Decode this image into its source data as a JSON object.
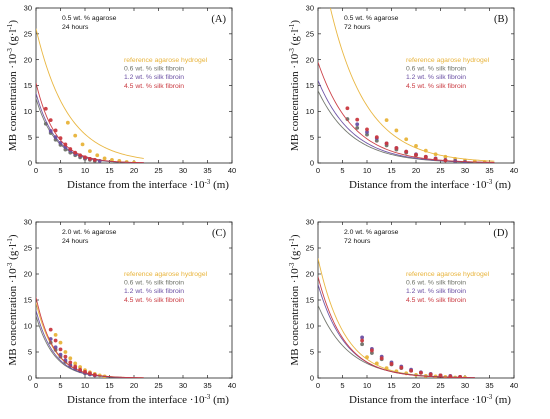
{
  "figure": {
    "ylabel_main": "MB concentration ·10",
    "ylabel_exp": "-3",
    "ylabel_unit_open": " (g·l",
    "ylabel_unit_exp": "-1",
    "ylabel_unit_close": ")",
    "xlabel_main": "Distance from the interface ·10",
    "xlabel_exp": "-3",
    "xlabel_unit": " (m)"
  },
  "series_styles": [
    {
      "name": "reference agarose hydrogel",
      "color": "#e8b339"
    },
    {
      "name": "0.6 wt. % silk fibroin",
      "color": "#6e7268"
    },
    {
      "name": "1.2 wt. % silk fibroin",
      "color": "#6a4fa3"
    },
    {
      "name": "4.5 wt. % silk fibroin",
      "color": "#c9383f"
    }
  ],
  "chart_data": [
    {
      "type": "scatter",
      "panel_label": "(A)",
      "condition": "0.5 wt. % agarose",
      "time": "24 hours",
      "xlim": [
        0,
        40
      ],
      "ylim": [
        0,
        30
      ],
      "xticks": [
        0,
        5,
        10,
        15,
        20,
        25,
        30,
        35,
        40
      ],
      "yticks": [
        0,
        5,
        10,
        15,
        20,
        25,
        30
      ],
      "legend_position": "right",
      "series": [
        {
          "name": "reference agarose hydrogel",
          "fit": {
            "c0": 26.0,
            "L": 6.5,
            "xmax": 22
          },
          "points": [
            [
              6.5,
              7.8
            ],
            [
              8.0,
              5.3
            ],
            [
              9.5,
              3.6
            ],
            [
              11.0,
              2.3
            ],
            [
              12.5,
              1.5
            ],
            [
              14.0,
              0.9
            ],
            [
              15.5,
              0.6
            ],
            [
              17.0,
              0.4
            ],
            [
              18.5,
              0.2
            ],
            [
              20.0,
              0.1
            ]
          ]
        },
        {
          "name": "0.6 wt. % silk fibroin",
          "fit": {
            "c0": 12.5,
            "L": 4.0,
            "xmax": 22
          },
          "points": [
            [
              2.0,
              7.6
            ],
            [
              3.0,
              5.8
            ],
            [
              4.0,
              4.5
            ],
            [
              5.0,
              3.5
            ],
            [
              6.0,
              2.6
            ],
            [
              7.0,
              2.0
            ],
            [
              8.0,
              1.5
            ],
            [
              9.0,
              1.1
            ],
            [
              10.0,
              0.8
            ],
            [
              11.0,
              0.6
            ],
            [
              12.0,
              0.4
            ]
          ]
        },
        {
          "name": "1.2 wt. % silk fibroin",
          "fit": {
            "c0": 13.5,
            "L": 4.0,
            "xmax": 22
          },
          "points": [
            [
              3.0,
              6.2
            ],
            [
              4.0,
              5.0
            ],
            [
              5.0,
              3.9
            ],
            [
              6.0,
              3.1
            ],
            [
              7.0,
              2.4
            ],
            [
              8.0,
              1.8
            ],
            [
              9.0,
              1.4
            ],
            [
              10.0,
              1.0
            ],
            [
              11.0,
              0.8
            ],
            [
              12.0,
              0.6
            ],
            [
              13.0,
              0.4
            ]
          ]
        },
        {
          "name": "4.5 wt. % silk fibroin",
          "fit": {
            "c0": 15.5,
            "L": 4.0,
            "xmax": 22
          },
          "points": [
            [
              2.0,
              10.5
            ],
            [
              3.0,
              8.3
            ],
            [
              4.0,
              6.3
            ],
            [
              5.0,
              4.8
            ],
            [
              6.0,
              3.6
            ],
            [
              7.0,
              2.7
            ],
            [
              8.0,
              2.0
            ],
            [
              9.0,
              1.5
            ],
            [
              10.0,
              1.1
            ],
            [
              11.0,
              0.8
            ],
            [
              12.0,
              0.6
            ]
          ]
        }
      ]
    },
    {
      "type": "scatter",
      "panel_label": "(B)",
      "condition": "0.5 wt. % agarose",
      "time": "72 hours",
      "xlim": [
        0,
        40
      ],
      "ylim": [
        0,
        30
      ],
      "xticks": [
        0,
        5,
        10,
        15,
        20,
        25,
        30,
        35,
        40
      ],
      "yticks": [
        0,
        5,
        10,
        15,
        20,
        25,
        30
      ],
      "legend_position": "right",
      "series": [
        {
          "name": "reference agarose hydrogel",
          "fit": {
            "c0": 42.0,
            "L": 7.5,
            "xmax": 36
          },
          "points": [
            [
              14.0,
              8.3
            ],
            [
              16.0,
              6.3
            ],
            [
              18.0,
              4.6
            ],
            [
              20.0,
              3.3
            ],
            [
              22.0,
              2.4
            ],
            [
              24.0,
              1.7
            ],
            [
              26.0,
              1.2
            ],
            [
              28.0,
              0.8
            ],
            [
              30.0,
              0.5
            ],
            [
              32.0,
              0.3
            ],
            [
              34.0,
              0.2
            ]
          ]
        },
        {
          "name": "0.6 wt. % silk fibroin",
          "fit": {
            "c0": 14.0,
            "L": 7.0,
            "xmax": 36
          },
          "points": [
            [
              6.0,
              8.5
            ],
            [
              8.0,
              6.8
            ],
            [
              10.0,
              5.5
            ],
            [
              12.0,
              4.3
            ],
            [
              14.0,
              3.4
            ],
            [
              16.0,
              2.6
            ],
            [
              18.0,
              2.0
            ],
            [
              20.0,
              1.5
            ],
            [
              22.0,
              1.1
            ],
            [
              24.0,
              0.8
            ],
            [
              26.0,
              0.5
            ],
            [
              28.0,
              0.3
            ]
          ]
        },
        {
          "name": "1.2 wt. % silk fibroin",
          "fit": {
            "c0": 16.0,
            "L": 7.0,
            "xmax": 36
          },
          "points": [
            [
              8.0,
              7.5
            ],
            [
              10.0,
              6.0
            ],
            [
              12.0,
              4.8
            ],
            [
              14.0,
              3.8
            ],
            [
              16.0,
              2.9
            ],
            [
              18.0,
              2.2
            ],
            [
              20.0,
              1.7
            ],
            [
              22.0,
              1.2
            ],
            [
              24.0,
              0.9
            ],
            [
              26.0,
              0.6
            ],
            [
              28.0,
              0.4
            ],
            [
              30.0,
              0.2
            ]
          ]
        },
        {
          "name": "4.5 wt. % silk fibroin",
          "fit": {
            "c0": 19.5,
            "L": 7.0,
            "xmax": 36
          },
          "points": [
            [
              6.0,
              10.6
            ],
            [
              8.0,
              8.4
            ],
            [
              10.0,
              6.5
            ],
            [
              12.0,
              5.0
            ],
            [
              14.0,
              3.8
            ],
            [
              16.0,
              2.9
            ],
            [
              18.0,
              2.2
            ],
            [
              20.0,
              1.6
            ],
            [
              22.0,
              1.2
            ],
            [
              24.0,
              0.8
            ],
            [
              26.0,
              0.5
            ]
          ]
        }
      ]
    },
    {
      "type": "scatter",
      "panel_label": "(C)",
      "condition": "2.0 wt. % agarose",
      "time": "24 hours",
      "xlim": [
        0,
        40
      ],
      "ylim": [
        0,
        30
      ],
      "xticks": [
        0,
        5,
        10,
        15,
        20,
        25,
        30,
        35,
        40
      ],
      "yticks": [
        0,
        5,
        10,
        15,
        20,
        25,
        30
      ],
      "legend_position": "right",
      "series": [
        {
          "name": "reference agarose hydrogel",
          "fit": {
            "c0": 14.5,
            "L": 3.8,
            "xmax": 22
          },
          "points": [
            [
              4.0,
              8.3
            ],
            [
              5.0,
              6.8
            ],
            [
              6.0,
              5.0
            ],
            [
              7.0,
              3.8
            ],
            [
              8.0,
              2.8
            ],
            [
              9.0,
              2.1
            ],
            [
              10.0,
              1.5
            ],
            [
              11.0,
              1.1
            ],
            [
              12.0,
              0.8
            ],
            [
              13.0,
              0.5
            ],
            [
              14.0,
              0.3
            ]
          ]
        },
        {
          "name": "0.6 wt. % silk fibroin",
          "fit": {
            "c0": 12.0,
            "L": 3.7,
            "xmax": 22
          },
          "points": [
            [
              3.0,
              6.8
            ],
            [
              4.0,
              5.4
            ],
            [
              5.0,
              4.1
            ],
            [
              6.0,
              3.1
            ],
            [
              7.0,
              2.3
            ],
            [
              8.0,
              1.7
            ],
            [
              9.0,
              1.3
            ],
            [
              10.0,
              0.9
            ],
            [
              11.0,
              0.7
            ],
            [
              12.0,
              0.5
            ]
          ]
        },
        {
          "name": "1.2 wt. % silk fibroin",
          "fit": {
            "c0": 13.0,
            "L": 3.7,
            "xmax": 22
          },
          "points": [
            [
              3.0,
              7.5
            ],
            [
              4.0,
              5.9
            ],
            [
              5.0,
              4.5
            ],
            [
              6.0,
              3.4
            ],
            [
              7.0,
              2.5
            ],
            [
              8.0,
              1.9
            ],
            [
              9.0,
              1.4
            ],
            [
              10.0,
              1.0
            ],
            [
              11.0,
              0.7
            ],
            [
              12.0,
              0.5
            ]
          ]
        },
        {
          "name": "4.5 wt. % silk fibroin",
          "fit": {
            "c0": 15.5,
            "L": 3.7,
            "xmax": 22
          },
          "points": [
            [
              3.0,
              9.3
            ],
            [
              4.0,
              7.2
            ],
            [
              5.0,
              5.5
            ],
            [
              6.0,
              4.1
            ],
            [
              7.0,
              3.0
            ],
            [
              8.0,
              2.2
            ],
            [
              9.0,
              1.6
            ],
            [
              10.0,
              1.2
            ],
            [
              11.0,
              0.9
            ],
            [
              12.0,
              0.6
            ]
          ]
        }
      ]
    },
    {
      "type": "scatter",
      "panel_label": "(D)",
      "condition": "2.0 wt. % agarose",
      "time": "72 hours",
      "xlim": [
        0,
        40
      ],
      "ylim": [
        0,
        30
      ],
      "xticks": [
        0,
        5,
        10,
        15,
        20,
        25,
        30,
        35,
        40
      ],
      "yticks": [
        0,
        5,
        10,
        15,
        20,
        25,
        30
      ],
      "legend_position": "right",
      "series": [
        {
          "name": "reference agarose hydrogel",
          "fit": {
            "c0": 23.0,
            "L": 5.4,
            "xmax": 32
          },
          "points": [
            [
              10.0,
              4.0
            ],
            [
              12.0,
              2.8
            ],
            [
              14.0,
              1.9
            ],
            [
              16.0,
              1.3
            ],
            [
              18.0,
              0.9
            ],
            [
              20.0,
              0.6
            ],
            [
              22.0,
              0.4
            ],
            [
              24.0,
              0.3
            ],
            [
              26.0,
              0.2
            ],
            [
              28.0,
              0.1
            ],
            [
              30.0,
              0.1
            ]
          ]
        },
        {
          "name": "0.6 wt. % silk fibroin",
          "fit": {
            "c0": 14.0,
            "L": 6.2,
            "xmax": 32
          },
          "points": [
            [
              9.0,
              6.5
            ],
            [
              11.0,
              4.8
            ],
            [
              13.0,
              3.6
            ],
            [
              15.0,
              2.6
            ],
            [
              17.0,
              1.9
            ],
            [
              19.0,
              1.4
            ],
            [
              21.0,
              1.0
            ],
            [
              23.0,
              0.7
            ],
            [
              25.0,
              0.5
            ],
            [
              27.0,
              0.3
            ],
            [
              29.0,
              0.2
            ]
          ]
        },
        {
          "name": "1.2 wt. % silk fibroin",
          "fit": {
            "c0": 18.0,
            "L": 5.6,
            "xmax": 32
          },
          "points": [
            [
              9.0,
              7.8
            ],
            [
              11.0,
              5.6
            ],
            [
              13.0,
              4.1
            ],
            [
              15.0,
              3.0
            ],
            [
              17.0,
              2.2
            ],
            [
              19.0,
              1.6
            ],
            [
              21.0,
              1.1
            ],
            [
              23.0,
              0.8
            ],
            [
              25.0,
              0.5
            ],
            [
              27.0,
              0.4
            ],
            [
              29.0,
              0.2
            ]
          ]
        },
        {
          "name": "4.5 wt. % silk fibroin",
          "fit": {
            "c0": 19.5,
            "L": 5.4,
            "xmax": 32
          },
          "points": [
            [
              9.0,
              7.2
            ],
            [
              11.0,
              5.3
            ],
            [
              13.0,
              3.8
            ],
            [
              15.0,
              2.7
            ],
            [
              17.0,
              2.0
            ],
            [
              19.0,
              1.4
            ],
            [
              21.0,
              1.0
            ],
            [
              23.0,
              0.7
            ],
            [
              25.0,
              0.5
            ],
            [
              27.0,
              0.3
            ],
            [
              29.0,
              0.2
            ]
          ]
        }
      ]
    }
  ]
}
